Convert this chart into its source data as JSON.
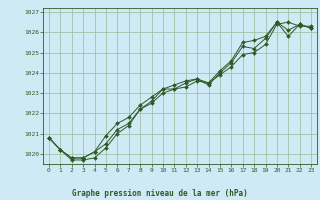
{
  "title": "Graphe pression niveau de la mer (hPa)",
  "background_color": "#cfe9f5",
  "line_color": "#2d5a27",
  "grid_color": "#99bb99",
  "ylim": [
    1019.5,
    1027.2
  ],
  "xlim": [
    -0.5,
    23.5
  ],
  "yticks": [
    1020,
    1021,
    1022,
    1023,
    1024,
    1025,
    1026,
    1027
  ],
  "xticks": [
    0,
    1,
    2,
    3,
    4,
    5,
    6,
    7,
    8,
    9,
    10,
    11,
    12,
    13,
    14,
    15,
    16,
    17,
    18,
    19,
    20,
    21,
    22,
    23
  ],
  "series": [
    [
      1020.8,
      1020.2,
      1019.8,
      1019.8,
      1020.1,
      1020.5,
      1021.2,
      1021.5,
      1022.2,
      1022.5,
      1023.0,
      1023.2,
      1023.3,
      1023.6,
      1023.5,
      1023.9,
      1024.3,
      1024.9,
      1025.0,
      1025.4,
      1026.4,
      1026.5,
      1026.3,
      1026.3
    ],
    [
      1020.8,
      1020.2,
      1019.7,
      1019.7,
      1019.8,
      1020.3,
      1021.0,
      1021.4,
      1022.2,
      1022.6,
      1023.2,
      1023.2,
      1023.5,
      1023.7,
      1023.4,
      1024.0,
      1024.5,
      1025.3,
      1025.2,
      1025.7,
      1026.5,
      1025.8,
      1026.4,
      1026.2
    ],
    [
      1020.8,
      1020.2,
      1019.8,
      1019.8,
      1020.1,
      1020.9,
      1021.5,
      1021.8,
      1022.4,
      1022.8,
      1023.2,
      1023.4,
      1023.6,
      1023.7,
      1023.5,
      1024.1,
      1024.6,
      1025.5,
      1025.6,
      1025.8,
      1026.5,
      1026.1,
      1026.4,
      1026.2
    ]
  ],
  "figsize": [
    3.2,
    2.0
  ],
  "dpi": 100
}
